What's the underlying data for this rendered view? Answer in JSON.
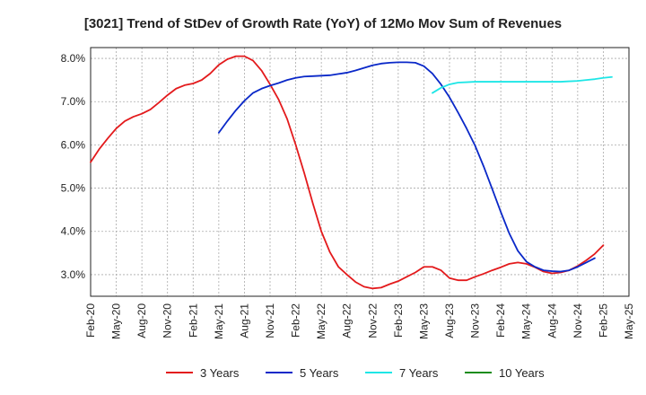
{
  "chart_data": {
    "type": "line",
    "title": "[3021]  Trend of StDev of Growth Rate (YoY) of 12Mo Mov Sum of Revenues",
    "xlabel": "",
    "ylabel": "",
    "x_tick_labels": [
      "Feb-20",
      "May-20",
      "Aug-20",
      "Nov-20",
      "Feb-21",
      "May-21",
      "Aug-21",
      "Nov-21",
      "Feb-22",
      "May-22",
      "Aug-22",
      "Nov-22",
      "Feb-23",
      "May-23",
      "Aug-23",
      "Nov-23",
      "Feb-24",
      "May-24",
      "Aug-24",
      "Nov-24",
      "Feb-25",
      "May-25"
    ],
    "y_tick_labels": [
      "3.0%",
      "4.0%",
      "5.0%",
      "6.0%",
      "7.0%",
      "8.0%"
    ],
    "y_ticks": [
      3.0,
      4.0,
      5.0,
      6.0,
      7.0,
      8.0
    ],
    "ylim": [
      2.5,
      8.25
    ],
    "xlim_months": [
      0,
      63
    ],
    "grid": true,
    "legend_position": "bottom",
    "series": [
      {
        "name": "3 Years",
        "color": "#e31a1c",
        "points": [
          [
            0,
            5.6
          ],
          [
            1,
            5.9
          ],
          [
            2,
            6.15
          ],
          [
            3,
            6.38
          ],
          [
            4,
            6.55
          ],
          [
            5,
            6.65
          ],
          [
            6,
            6.72
          ],
          [
            7,
            6.82
          ],
          [
            8,
            6.98
          ],
          [
            9,
            7.15
          ],
          [
            10,
            7.3
          ],
          [
            11,
            7.38
          ],
          [
            12,
            7.42
          ],
          [
            13,
            7.5
          ],
          [
            14,
            7.65
          ],
          [
            15,
            7.85
          ],
          [
            16,
            7.98
          ],
          [
            17,
            8.05
          ],
          [
            18,
            8.05
          ],
          [
            19,
            7.95
          ],
          [
            20,
            7.72
          ],
          [
            21,
            7.4
          ],
          [
            22,
            7.05
          ],
          [
            23,
            6.6
          ],
          [
            24,
            6.0
          ],
          [
            25,
            5.35
          ],
          [
            26,
            4.65
          ],
          [
            27,
            4.0
          ],
          [
            28,
            3.52
          ],
          [
            29,
            3.18
          ],
          [
            30,
            3.0
          ],
          [
            31,
            2.83
          ],
          [
            32,
            2.72
          ],
          [
            33,
            2.68
          ],
          [
            34,
            2.7
          ],
          [
            35,
            2.78
          ],
          [
            36,
            2.85
          ],
          [
            37,
            2.95
          ],
          [
            38,
            3.05
          ],
          [
            39,
            3.18
          ],
          [
            40,
            3.18
          ],
          [
            41,
            3.1
          ],
          [
            42,
            2.92
          ],
          [
            43,
            2.87
          ],
          [
            44,
            2.87
          ],
          [
            45,
            2.95
          ],
          [
            46,
            3.02
          ],
          [
            47,
            3.1
          ],
          [
            48,
            3.17
          ],
          [
            49,
            3.25
          ],
          [
            50,
            3.28
          ],
          [
            51,
            3.25
          ],
          [
            52,
            3.17
          ],
          [
            53,
            3.07
          ],
          [
            54,
            3.03
          ],
          [
            55,
            3.05
          ],
          [
            56,
            3.1
          ],
          [
            57,
            3.2
          ],
          [
            58,
            3.33
          ],
          [
            59,
            3.48
          ],
          [
            60,
            3.68
          ]
        ]
      },
      {
        "name": "5 Years",
        "color": "#0a28c8",
        "points": [
          [
            15,
            6.28
          ],
          [
            16,
            6.55
          ],
          [
            17,
            6.8
          ],
          [
            18,
            7.02
          ],
          [
            19,
            7.2
          ],
          [
            20,
            7.3
          ],
          [
            21,
            7.37
          ],
          [
            22,
            7.43
          ],
          [
            23,
            7.5
          ],
          [
            24,
            7.55
          ],
          [
            25,
            7.58
          ],
          [
            26,
            7.59
          ],
          [
            27,
            7.6
          ],
          [
            28,
            7.61
          ],
          [
            29,
            7.64
          ],
          [
            30,
            7.67
          ],
          [
            31,
            7.72
          ],
          [
            32,
            7.78
          ],
          [
            33,
            7.84
          ],
          [
            34,
            7.88
          ],
          [
            35,
            7.9
          ],
          [
            36,
            7.91
          ],
          [
            37,
            7.91
          ],
          [
            38,
            7.9
          ],
          [
            39,
            7.82
          ],
          [
            40,
            7.65
          ],
          [
            41,
            7.4
          ],
          [
            42,
            7.1
          ],
          [
            43,
            6.75
          ],
          [
            44,
            6.38
          ],
          [
            45,
            5.98
          ],
          [
            46,
            5.5
          ],
          [
            47,
            4.98
          ],
          [
            48,
            4.45
          ],
          [
            49,
            3.95
          ],
          [
            50,
            3.55
          ],
          [
            51,
            3.3
          ],
          [
            52,
            3.18
          ],
          [
            53,
            3.1
          ],
          [
            54,
            3.08
          ],
          [
            55,
            3.07
          ],
          [
            56,
            3.1
          ],
          [
            57,
            3.18
          ],
          [
            58,
            3.28
          ],
          [
            59,
            3.38
          ]
        ]
      },
      {
        "name": "7 Years",
        "color": "#1ee6e6",
        "points": [
          [
            40,
            7.2
          ],
          [
            41,
            7.32
          ],
          [
            42,
            7.4
          ],
          [
            43,
            7.44
          ],
          [
            44,
            7.45
          ],
          [
            45,
            7.46
          ],
          [
            46,
            7.46
          ],
          [
            47,
            7.46
          ],
          [
            48,
            7.46
          ],
          [
            49,
            7.46
          ],
          [
            50,
            7.46
          ],
          [
            51,
            7.46
          ],
          [
            52,
            7.46
          ],
          [
            53,
            7.46
          ],
          [
            54,
            7.46
          ],
          [
            55,
            7.46
          ],
          [
            56,
            7.47
          ],
          [
            57,
            7.48
          ],
          [
            58,
            7.5
          ],
          [
            59,
            7.52
          ],
          [
            60,
            7.55
          ],
          [
            61,
            7.57
          ]
        ]
      },
      {
        "name": "10 Years",
        "color": "#1a8c1a",
        "points": []
      }
    ]
  }
}
